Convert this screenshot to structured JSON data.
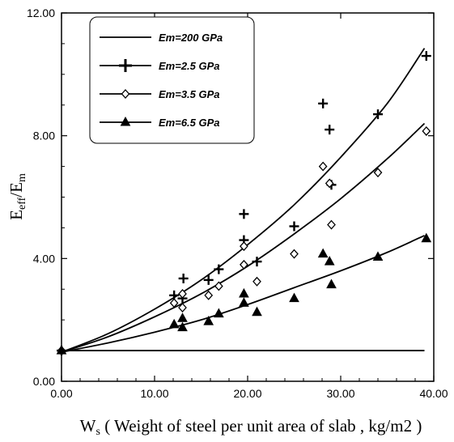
{
  "chart_data": {
    "type": "scatter",
    "xlim": [
      0,
      40
    ],
    "ylim": [
      0,
      12
    ],
    "xticks": [
      "0.00",
      "10.00",
      "20.00",
      "30.00",
      "40.00"
    ],
    "yticks": [
      "0.00",
      "4.00",
      "8.00",
      "12.00"
    ],
    "xlabel": {
      "prefix": "W",
      "sub": "s",
      "rest": " ( Weight of steel per unit area of slab , kg/m2 )"
    },
    "ylabel": {
      "prefix": "E",
      "sub1": "eff",
      "slash": "/E",
      "sub2": "m"
    },
    "legend_position": "top-left",
    "series": [
      {
        "name": "Em=200 GPa",
        "marker": "none",
        "points": [],
        "curve": [
          [
            0,
            1.0
          ],
          [
            39,
            1.0
          ]
        ]
      },
      {
        "name": "Em=2.5 GPa",
        "marker": "plus",
        "points": [
          [
            0,
            1.0
          ],
          [
            12.1,
            2.8
          ],
          [
            13.0,
            2.7
          ],
          [
            13.1,
            3.35
          ],
          [
            15.8,
            3.3
          ],
          [
            16.9,
            3.65
          ],
          [
            19.6,
            4.6
          ],
          [
            19.6,
            5.45
          ],
          [
            21.0,
            3.9
          ],
          [
            25.0,
            5.05
          ],
          [
            28.1,
            9.05
          ],
          [
            28.8,
            8.2
          ],
          [
            29.0,
            6.4
          ],
          [
            34.0,
            8.7
          ],
          [
            39.2,
            10.6
          ]
        ],
        "curve": [
          [
            0,
            0.95
          ],
          [
            5,
            1.55
          ],
          [
            10,
            2.35
          ],
          [
            15,
            3.3
          ],
          [
            20,
            4.45
          ],
          [
            25,
            5.75
          ],
          [
            30,
            7.3
          ],
          [
            35,
            9.05
          ],
          [
            39,
            10.85
          ]
        ]
      },
      {
        "name": "Em=3.5 GPa",
        "marker": "diamond",
        "points": [
          [
            0,
            1.0
          ],
          [
            12.1,
            2.55
          ],
          [
            13.0,
            2.4
          ],
          [
            13.0,
            2.85
          ],
          [
            15.8,
            2.8
          ],
          [
            16.9,
            3.1
          ],
          [
            19.6,
            3.8
          ],
          [
            19.6,
            4.4
          ],
          [
            21.0,
            3.25
          ],
          [
            25.0,
            4.15
          ],
          [
            28.1,
            7.0
          ],
          [
            28.8,
            6.45
          ],
          [
            29.0,
            5.1
          ],
          [
            34.0,
            6.8
          ],
          [
            39.2,
            8.15
          ]
        ],
        "curve": [
          [
            0,
            0.95
          ],
          [
            5,
            1.45
          ],
          [
            10,
            2.1
          ],
          [
            15,
            2.85
          ],
          [
            20,
            3.75
          ],
          [
            25,
            4.8
          ],
          [
            30,
            5.95
          ],
          [
            35,
            7.25
          ],
          [
            39,
            8.4
          ]
        ]
      },
      {
        "name": "Em=6.5 GPa",
        "marker": "triangle",
        "points": [
          [
            0,
            1.0
          ],
          [
            12.1,
            1.85
          ],
          [
            13.0,
            1.75
          ],
          [
            13.0,
            2.05
          ],
          [
            15.8,
            1.95
          ],
          [
            16.9,
            2.2
          ],
          [
            19.6,
            2.55
          ],
          [
            19.6,
            2.85
          ],
          [
            21.0,
            2.25
          ],
          [
            25.0,
            2.7
          ],
          [
            28.1,
            4.15
          ],
          [
            28.8,
            3.9
          ],
          [
            29.0,
            3.15
          ],
          [
            34.0,
            4.05
          ],
          [
            39.2,
            4.65
          ]
        ],
        "curve": [
          [
            0,
            0.95
          ],
          [
            5,
            1.25
          ],
          [
            10,
            1.6
          ],
          [
            15,
            2.0
          ],
          [
            20,
            2.5
          ],
          [
            25,
            3.05
          ],
          [
            30,
            3.6
          ],
          [
            35,
            4.2
          ],
          [
            39,
            4.75
          ]
        ]
      }
    ]
  }
}
